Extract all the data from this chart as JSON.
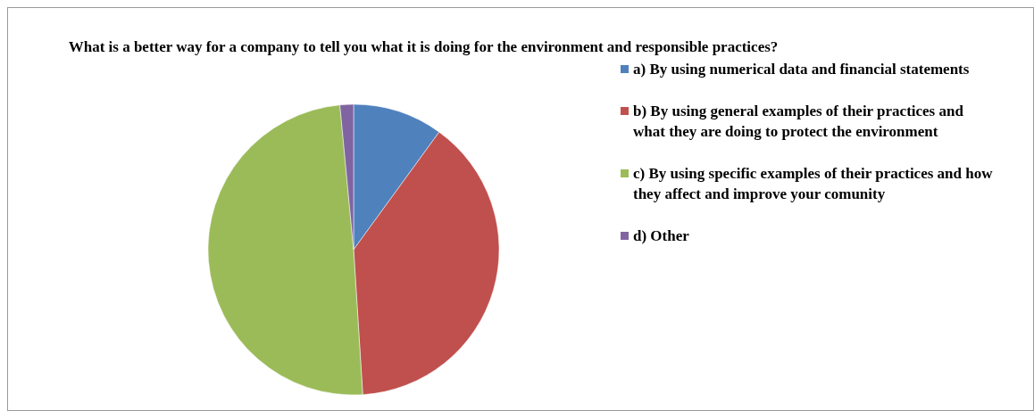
{
  "chart_data": {
    "type": "pie",
    "title": "What is a better way for a company to tell you what it is doing for the environment and responsible practices?",
    "categories": [
      "a) By using numerical data and financial statements",
      "b) By using general examples of their practices and what they are doing to protect the environment",
      "c) By using specific examples of their practices and how they affect and improve your comunity",
      "d) Other"
    ],
    "values": [
      10,
      39,
      49.5,
      1.5
    ],
    "colors": [
      "#4f81bd",
      "#c0504d",
      "#9bbb59",
      "#8064a2"
    ],
    "legend": "right"
  }
}
